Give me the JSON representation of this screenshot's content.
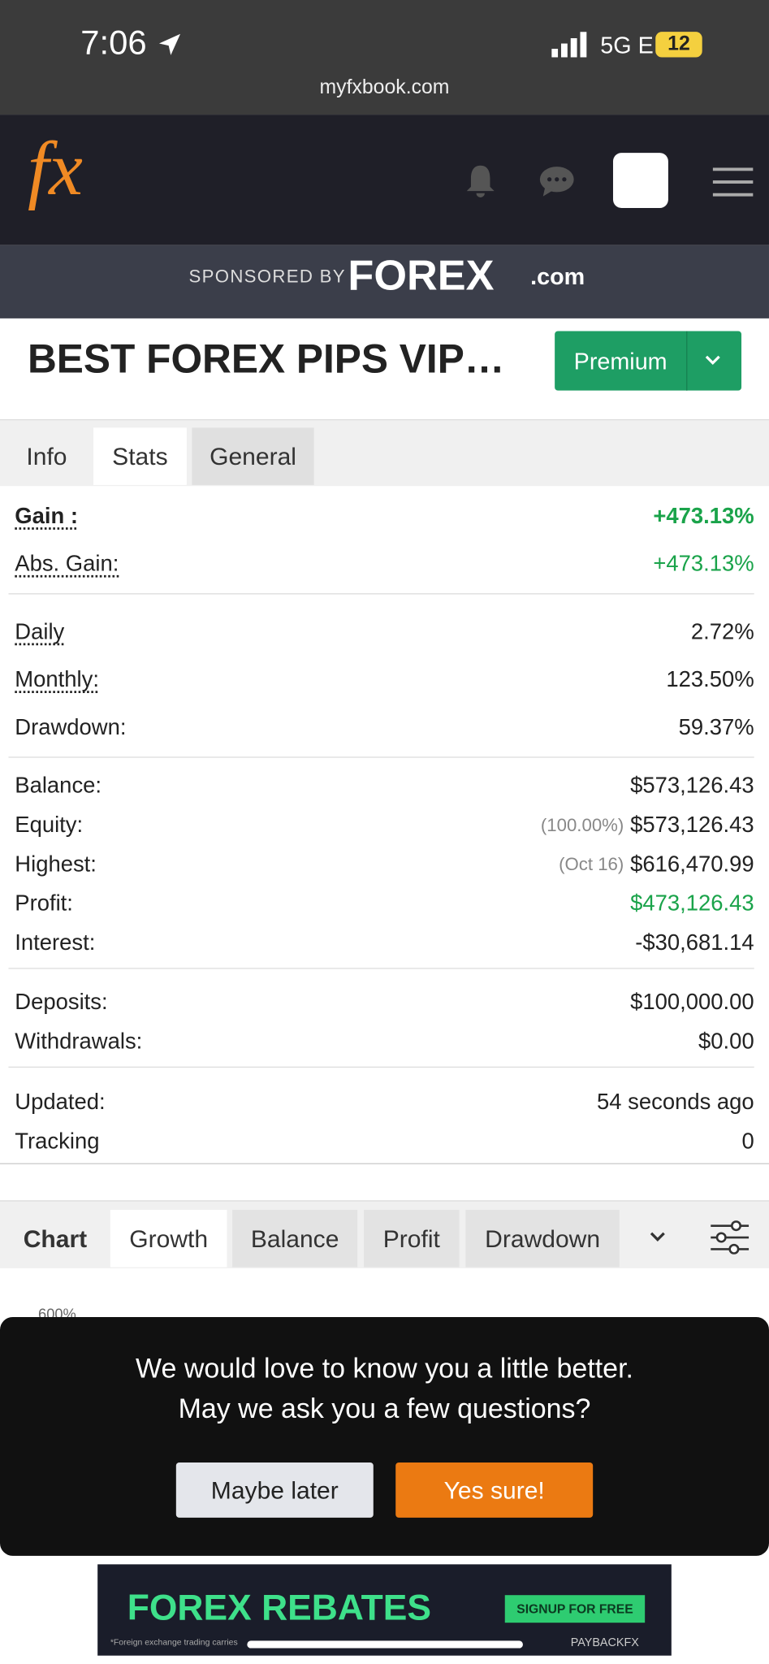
{
  "status_bar": {
    "time": "7:06",
    "network": "5G E",
    "battery": "12",
    "url": "myfxbook.com"
  },
  "header": {
    "logo": "fx"
  },
  "sponsor": {
    "label": "SPONSORED BY",
    "brand": "FOREX",
    "suffix": ".com"
  },
  "title": {
    "text": "BEST FOREX PIPS VIP…",
    "button": "Premium"
  },
  "tabs": [
    "Info",
    "Stats",
    "General"
  ],
  "stats": [
    [
      {
        "label": "Gain :",
        "value": "+473.13%"
      },
      {
        "label": "Abs. Gain:",
        "value": "+473.13%"
      }
    ],
    [
      {
        "label": "Daily",
        "value": "2.72%"
      },
      {
        "label": "Monthly:",
        "value": "123.50%"
      },
      {
        "label": "Drawdown:",
        "value": "59.37%"
      }
    ],
    [
      {
        "label": "Balance:",
        "value": "$573,126.43"
      },
      {
        "label": "Equity:",
        "note": "(100.00%)",
        "value": "$573,126.43"
      },
      {
        "label": "Highest:",
        "note": "(Oct 16)",
        "value": "$616,470.99"
      },
      {
        "label": "Profit:",
        "value": "$473,126.43"
      },
      {
        "label": "Interest:",
        "value": "-$30,681.14"
      }
    ],
    [
      {
        "label": "Deposits:",
        "value": "$100,000.00"
      },
      {
        "label": "Withdrawals:",
        "value": "$0.00"
      }
    ],
    [
      {
        "label": "Updated:",
        "value": "54 seconds ago"
      },
      {
        "label": "Tracking",
        "value": "0"
      }
    ]
  ],
  "chart_tabs": [
    "Chart",
    "Growth",
    "Balance",
    "Profit",
    "Drawdown"
  ],
  "chart_axis_label": "600%",
  "popup": {
    "line1": "We would love to know you a little better.",
    "line2": "May we ask you a few questions?",
    "decline": "Maybe later",
    "accept": "Yes sure!"
  },
  "ad": {
    "title": "FOREX REBATES",
    "cta": "SIGNUP FOR FREE",
    "disclaimer": "*Foreign exchange trading carries",
    "brand": "PAYBACKFX"
  }
}
